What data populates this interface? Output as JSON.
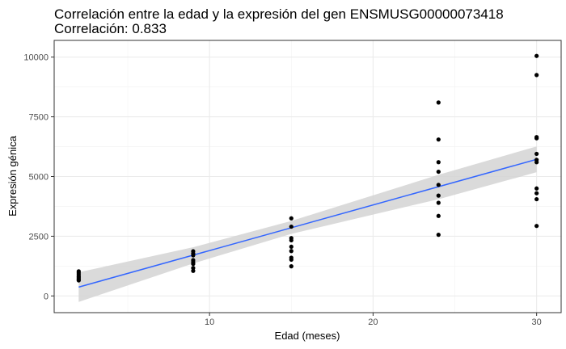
{
  "chart_data": {
    "type": "scatter",
    "title": "Correlación entre la edad y la expresión del gen ENSMUSG00000073418",
    "subtitle": "Correlación: 0.833",
    "xlabel": "Edad (meses)",
    "ylabel": "Expresión génica",
    "xlim": [
      0.5,
      31.5
    ],
    "ylim": [
      -700,
      10700
    ],
    "x_ticks": [
      10,
      20,
      30
    ],
    "x_tick_labels": [
      "10",
      "20",
      "30"
    ],
    "y_ticks": [
      0,
      2500,
      5000,
      7500,
      10000
    ],
    "y_tick_labels": [
      "0",
      "2500",
      "5000",
      "7500",
      "10000"
    ],
    "grid": true,
    "point_color": "#000000",
    "points": [
      {
        "x": 2,
        "y": 1030
      },
      {
        "x": 2,
        "y": 960
      },
      {
        "x": 2,
        "y": 890
      },
      {
        "x": 2,
        "y": 820
      },
      {
        "x": 2,
        "y": 760
      },
      {
        "x": 2,
        "y": 700
      },
      {
        "x": 2,
        "y": 650
      },
      {
        "x": 9,
        "y": 1870
      },
      {
        "x": 9,
        "y": 1780
      },
      {
        "x": 9,
        "y": 1700
      },
      {
        "x": 9,
        "y": 1500
      },
      {
        "x": 9,
        "y": 1420
      },
      {
        "x": 9,
        "y": 1340
      },
      {
        "x": 9,
        "y": 1170
      },
      {
        "x": 9,
        "y": 1050
      },
      {
        "x": 15,
        "y": 3250
      },
      {
        "x": 15,
        "y": 2900
      },
      {
        "x": 15,
        "y": 2420
      },
      {
        "x": 15,
        "y": 2330
      },
      {
        "x": 15,
        "y": 2060
      },
      {
        "x": 15,
        "y": 1880
      },
      {
        "x": 15,
        "y": 1600
      },
      {
        "x": 15,
        "y": 1520
      },
      {
        "x": 15,
        "y": 1240
      },
      {
        "x": 24,
        "y": 8100
      },
      {
        "x": 24,
        "y": 6550
      },
      {
        "x": 24,
        "y": 5600
      },
      {
        "x": 24,
        "y": 5200
      },
      {
        "x": 24,
        "y": 4650
      },
      {
        "x": 24,
        "y": 4200
      },
      {
        "x": 24,
        "y": 3900
      },
      {
        "x": 24,
        "y": 3350
      },
      {
        "x": 24,
        "y": 2560
      },
      {
        "x": 30,
        "y": 10050
      },
      {
        "x": 30,
        "y": 9250
      },
      {
        "x": 30,
        "y": 6650
      },
      {
        "x": 30,
        "y": 6600
      },
      {
        "x": 30,
        "y": 5950
      },
      {
        "x": 30,
        "y": 5700
      },
      {
        "x": 30,
        "y": 5600
      },
      {
        "x": 30,
        "y": 4500
      },
      {
        "x": 30,
        "y": 4300
      },
      {
        "x": 30,
        "y": 4050
      },
      {
        "x": 30,
        "y": 2930
      }
    ],
    "fit_line": {
      "color": "#3366FF",
      "x": [
        2,
        30
      ],
      "y": [
        370,
        5720
      ]
    },
    "confidence_band": {
      "color": "#D3D3D3",
      "x": [
        2,
        9,
        15,
        24,
        30
      ],
      "lower": [
        -250,
        1360,
        2600,
        4050,
        5180
      ],
      "upper": [
        990,
        2040,
        3140,
        5070,
        6260
      ]
    }
  }
}
